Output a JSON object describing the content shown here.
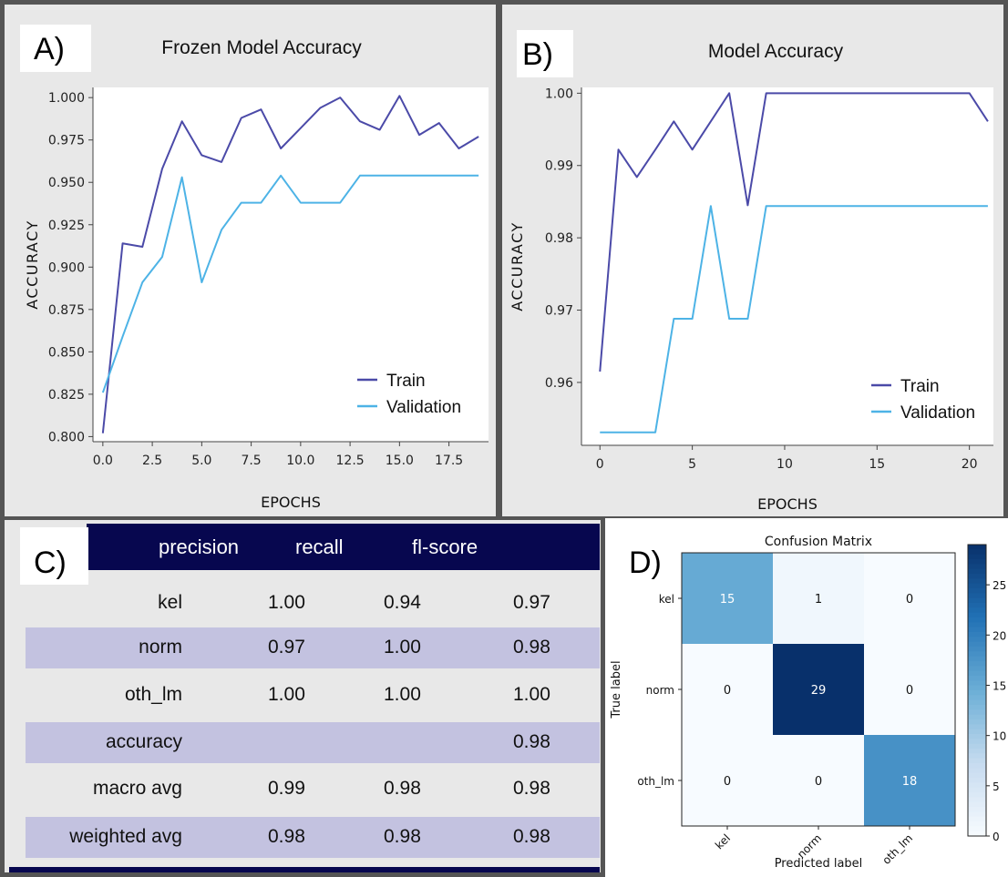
{
  "panels": {
    "a_label": "A)",
    "b_label": "B)",
    "c_label": "C)",
    "d_label": "D)"
  },
  "chart_data": [
    {
      "type": "line",
      "title": "Frozen Model Accuracy",
      "xlabel": "EPOCHS",
      "ylabel": "ACCURACY",
      "xlim": [
        -0.5,
        19.5
      ],
      "ylim": [
        0.797,
        1.006
      ],
      "xticks": [
        0,
        2.5,
        5,
        7.5,
        10,
        12.5,
        15,
        17.5
      ],
      "xtick_labels": [
        "0.0",
        "2.5",
        "5.0",
        "7.5",
        "10.0",
        "12.5",
        "15.0",
        "17.5"
      ],
      "yticks": [
        0.8,
        0.825,
        0.85,
        0.875,
        0.9,
        0.925,
        0.95,
        0.975,
        1.0
      ],
      "ytick_labels": [
        "0.800",
        "0.825",
        "0.850",
        "0.875",
        "0.900",
        "0.925",
        "0.950",
        "0.975",
        "1.000"
      ],
      "legend_position": "lower-right",
      "x": [
        0,
        1,
        2,
        3,
        4,
        5,
        6,
        7,
        8,
        9,
        10,
        11,
        12,
        13,
        14,
        15,
        16,
        17,
        18,
        19
      ],
      "series": [
        {
          "name": "Train",
          "color": "#4b4aa8",
          "values": [
            0.802,
            0.914,
            0.912,
            0.958,
            0.986,
            0.966,
            0.962,
            0.988,
            0.993,
            0.97,
            0.982,
            0.994,
            1.0,
            0.986,
            0.981,
            1.001,
            0.978,
            0.985,
            0.97,
            0.977
          ]
        },
        {
          "name": "Validation",
          "color": "#4db3e6",
          "values": [
            0.826,
            0.859,
            0.891,
            0.906,
            0.953,
            0.891,
            0.922,
            0.938,
            0.938,
            0.954,
            0.938,
            0.938,
            0.938,
            0.954,
            0.954,
            0.954,
            0.954,
            0.954,
            0.954,
            0.954
          ]
        }
      ]
    },
    {
      "type": "line",
      "title": "Model Accuracy",
      "xlabel": "EPOCHS",
      "ylabel": "ACCURACY",
      "xlim": [
        -1,
        21.3
      ],
      "ylim": [
        0.9513,
        1.0008
      ],
      "xticks": [
        0,
        5,
        10,
        15,
        20
      ],
      "xtick_labels": [
        "0",
        "5",
        "10",
        "15",
        "20"
      ],
      "yticks": [
        0.96,
        0.97,
        0.98,
        0.99,
        1.0
      ],
      "ytick_labels": [
        "0.96",
        "0.97",
        "0.98",
        "0.99",
        "1.00"
      ],
      "legend_position": "lower-right",
      "x": [
        0,
        1,
        2,
        3,
        4,
        5,
        6,
        7,
        8,
        9,
        10,
        11,
        12,
        13,
        14,
        15,
        16,
        17,
        18,
        19,
        20,
        21
      ],
      "series": [
        {
          "name": "Train",
          "color": "#4b4aa8",
          "values": [
            0.9615,
            0.9922,
            0.9884,
            0.9922,
            0.9961,
            0.9922,
            0.9961,
            1.0,
            0.9845,
            1.0,
            1.0,
            1.0,
            1.0,
            1.0,
            1.0,
            1.0,
            1.0,
            1.0,
            1.0,
            1.0,
            1.0,
            0.9961
          ]
        },
        {
          "name": "Validation",
          "color": "#4db3e6",
          "values": [
            0.9531,
            0.9531,
            0.9531,
            0.9531,
            0.9688,
            0.9688,
            0.9844,
            0.9688,
            0.9688,
            0.9844,
            0.9844,
            0.9844,
            0.9844,
            0.9844,
            0.9844,
            0.9844,
            0.9844,
            0.9844,
            0.9844,
            0.9844,
            0.9844,
            0.9844
          ]
        }
      ]
    },
    {
      "type": "table",
      "columns": [
        "",
        "precision",
        "recall",
        "fl-score"
      ],
      "rows": [
        {
          "label": "kel",
          "precision": "1.00",
          "recall": "0.94",
          "f1": "0.97"
        },
        {
          "label": "norm",
          "precision": "0.97",
          "recall": "1.00",
          "f1": "0.98"
        },
        {
          "label": "oth_lm",
          "precision": "1.00",
          "recall": "1.00",
          "f1": "1.00"
        },
        {
          "label": "accuracy",
          "precision": "",
          "recall": "",
          "f1": "0.98"
        },
        {
          "label": "macro avg",
          "precision": "0.99",
          "recall": "0.98",
          "f1": "0.98"
        },
        {
          "label": "weighted avg",
          "precision": "0.98",
          "recall": "0.98",
          "f1": "0.98"
        }
      ],
      "header_color": "#07074f",
      "shade_color": "#c3c2e0"
    },
    {
      "type": "heatmap",
      "title": "Confusion Matrix",
      "xlabel": "Predicted label",
      "ylabel": "True label",
      "labels": [
        "kel",
        "norm",
        "oth_lm"
      ],
      "matrix": [
        [
          15,
          1,
          0
        ],
        [
          0,
          29,
          0
        ],
        [
          0,
          0,
          18
        ]
      ],
      "colorbar_ticks": [
        0,
        5,
        10,
        15,
        20,
        25
      ],
      "vmin": 0,
      "vmax": 29,
      "colormap": "Blues"
    }
  ]
}
